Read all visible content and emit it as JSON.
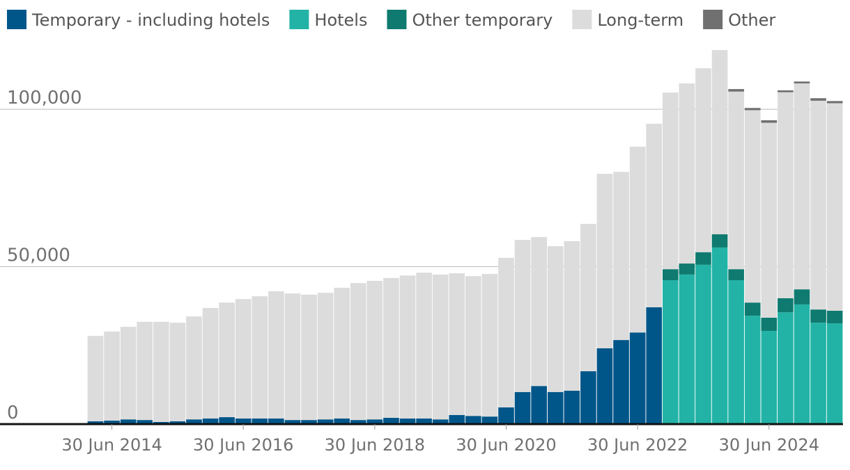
{
  "chart_data": {
    "type": "stacked-bar",
    "categories": [
      null,
      "30 Jun 2014",
      null,
      null,
      null,
      null,
      null,
      null,
      null,
      "30 Jun 2016",
      null,
      null,
      null,
      null,
      null,
      null,
      null,
      "30 Jun 2018",
      null,
      null,
      null,
      null,
      null,
      null,
      null,
      "30 Jun 2020",
      null,
      null,
      null,
      null,
      null,
      null,
      null,
      "30 Jun 2022",
      null,
      null,
      null,
      null,
      null,
      null,
      null,
      "30 Jun 2024",
      null,
      null,
      null,
      null
    ],
    "series": [
      {
        "name": "Temporary - including hotels",
        "color": "#005689",
        "values": [
          900,
          1100,
          1500,
          1300,
          700,
          900,
          1500,
          1800,
          2200,
          1800,
          1800,
          1800,
          1300,
          1300,
          1500,
          1800,
          1300,
          1500,
          2000,
          1800,
          1800,
          1500,
          2900,
          2600,
          2400,
          5300,
          10200,
          12100,
          10200,
          10600,
          16800,
          24100,
          26700,
          29100,
          37100,
          null,
          null,
          null,
          null,
          null,
          null,
          null,
          null,
          null,
          null,
          null
        ]
      },
      {
        "name": "Hotels",
        "color": "#22b3a6",
        "values": [
          null,
          null,
          null,
          null,
          null,
          null,
          null,
          null,
          null,
          null,
          null,
          null,
          null,
          null,
          null,
          null,
          null,
          null,
          null,
          null,
          null,
          null,
          null,
          null,
          null,
          null,
          null,
          null,
          null,
          null,
          null,
          null,
          null,
          null,
          null,
          45700,
          47500,
          50600,
          56100,
          45700,
          34400,
          29600,
          35500,
          38000,
          32200,
          32000
        ]
      },
      {
        "name": "Other temporary",
        "color": "#0f7a6f",
        "values": [
          null,
          null,
          null,
          null,
          null,
          null,
          null,
          null,
          null,
          null,
          null,
          null,
          null,
          null,
          null,
          null,
          null,
          null,
          null,
          null,
          null,
          null,
          null,
          null,
          null,
          null,
          null,
          null,
          null,
          null,
          null,
          null,
          null,
          null,
          null,
          3500,
          3500,
          4000,
          4200,
          3500,
          4200,
          4200,
          4500,
          4800,
          4200,
          4000
        ]
      },
      {
        "name": "Long-term",
        "color": "#dcdcdc",
        "values": [
          27100,
          28300,
          29400,
          31200,
          31800,
          31300,
          32700,
          35100,
          36400,
          37900,
          38800,
          40400,
          40200,
          39800,
          40200,
          41500,
          43500,
          44000,
          44400,
          45400,
          46300,
          46000,
          45000,
          44400,
          45300,
          47500,
          48300,
          47300,
          46300,
          47500,
          46800,
          55400,
          53400,
          59000,
          58300,
          56100,
          57200,
          58400,
          58500,
          56400,
          61100,
          61900,
          65400,
          65400,
          66300,
          65900
        ]
      },
      {
        "name": "Other",
        "color": "#707070",
        "values": [
          null,
          null,
          null,
          null,
          null,
          null,
          null,
          null,
          null,
          null,
          null,
          null,
          null,
          null,
          null,
          null,
          null,
          null,
          null,
          null,
          null,
          null,
          null,
          null,
          null,
          null,
          null,
          null,
          null,
          null,
          null,
          null,
          null,
          null,
          null,
          null,
          null,
          null,
          null,
          800,
          700,
          800,
          600,
          600,
          800,
          700
        ]
      }
    ],
    "ylim": [
      0,
      121000
    ],
    "yticks": [
      0,
      {
        "value": 50000,
        "label": "50,000"
      },
      {
        "value": 100000,
        "label": "100,000"
      }
    ],
    "grid": true
  }
}
